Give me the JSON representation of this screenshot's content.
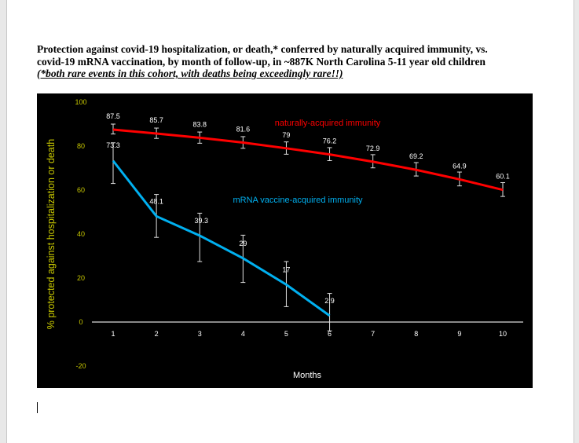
{
  "heading": {
    "line1": "Protection against covid-19 hospitalization, or death,* conferred by naturally acquired immunity, vs.",
    "line2": "covid-19 mRNA vaccination, by month of follow-up, in ~887K North Carolina 5-11 year old children",
    "note": "(*both rare events in this cohort, with deaths being exceedingly rare!!)"
  },
  "chart_data": {
    "type": "line",
    "title": "",
    "xlabel": "Months",
    "ylabel": "% protected against hospitalization or death",
    "xlim": [
      1,
      10
    ],
    "ylim": [
      -20,
      100
    ],
    "x_ticks": [
      "1",
      "2",
      "3",
      "4",
      "5",
      "6",
      "7",
      "8",
      "9",
      "10"
    ],
    "y_ticks": [
      "100",
      "80",
      "60",
      "40",
      "20",
      "0",
      "-20"
    ],
    "series": [
      {
        "name": "naturally-acquired immunity",
        "color": "#ff0000",
        "x": [
          1,
          2,
          3,
          4,
          5,
          6,
          7,
          8,
          9,
          10
        ],
        "values": [
          87.5,
          85.7,
          83.8,
          81.6,
          79,
          76.2,
          72.9,
          69.2,
          64.9,
          60.1
        ],
        "labels": [
          "87.5",
          "85.7",
          "83.8",
          "81.6",
          "79",
          "76.2",
          "72.9",
          "69.2",
          "64.9",
          "60.1"
        ],
        "err_low": [
          85.5,
          83.5,
          81.3,
          79.0,
          76.3,
          73.4,
          70.1,
          66.4,
          61.9,
          57.1
        ],
        "err_high": [
          90.0,
          88.2,
          86.4,
          84.3,
          81.9,
          79.3,
          76.1,
          72.5,
          68.2,
          63.4
        ]
      },
      {
        "name": "mRNA vaccine-acquired immunity",
        "color": "#00b0f0",
        "x": [
          1,
          2,
          3,
          4,
          5,
          6
        ],
        "values": [
          73.3,
          48.1,
          39.3,
          29,
          17,
          2.9
        ],
        "labels": [
          "73.3",
          "48.1",
          "39.3",
          "29",
          "17",
          "2.9"
        ],
        "err_low": [
          63.0,
          38.5,
          27.5,
          18.0,
          7.0,
          -4.0
        ],
        "err_high": [
          81.5,
          58.0,
          49.5,
          39.5,
          27.5,
          13.0
        ]
      }
    ]
  }
}
